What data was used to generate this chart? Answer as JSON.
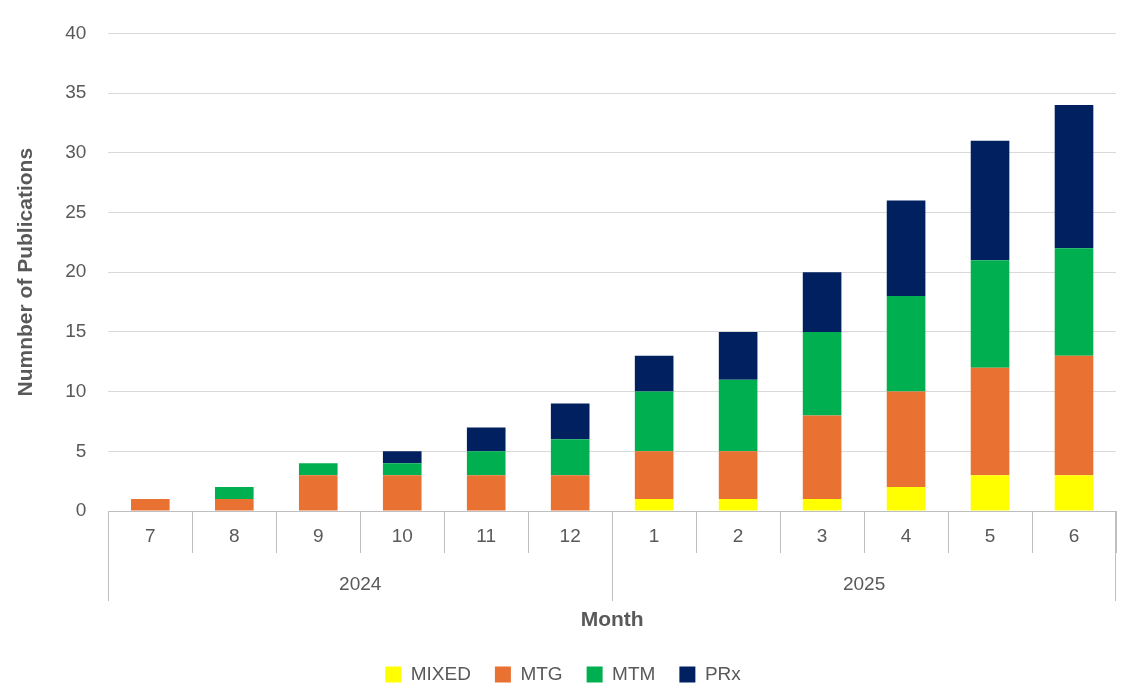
{
  "chart_data": {
    "type": "bar",
    "stacked": true,
    "xlabel": "Month",
    "ylabel": "Numnber of Publications",
    "categories": [
      "7",
      "8",
      "9",
      "10",
      "11",
      "12",
      "1",
      "2",
      "3",
      "4",
      "5",
      "6"
    ],
    "series": [
      {
        "name": "MIXED",
        "color": "#ffff00",
        "values": [
          0,
          0,
          0,
          0,
          0,
          0,
          1,
          1,
          1,
          2,
          3,
          3
        ]
      },
      {
        "name": "MTG",
        "color": "#e97132",
        "values": [
          1,
          1,
          3,
          3,
          3,
          3,
          4,
          4,
          7,
          8,
          9,
          10
        ]
      },
      {
        "name": "MTM",
        "color": "#00b050",
        "values": [
          0,
          1,
          1,
          1,
          2,
          3,
          5,
          6,
          7,
          8,
          9,
          9
        ]
      },
      {
        "name": "PRx",
        "color": "#002060",
        "values": [
          0,
          0,
          0,
          1,
          2,
          3,
          3,
          4,
          5,
          8,
          10,
          12
        ]
      }
    ],
    "annotations": [
      "2024",
      "2025"
    ],
    "ylim": [
      0,
      40
    ],
    "yticks": [
      0,
      5,
      10,
      15,
      20,
      25,
      30,
      35,
      40
    ],
    "grid": "y",
    "legend": "bottom"
  }
}
